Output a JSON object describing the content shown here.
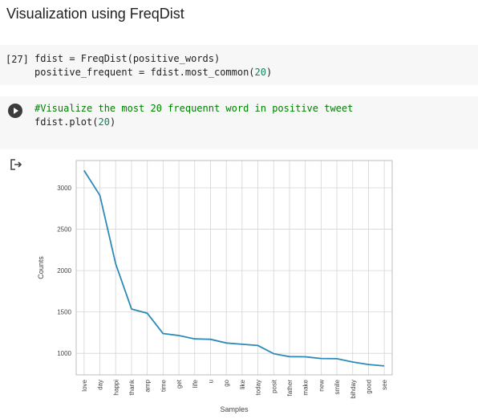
{
  "heading": "Visualization using FreqDist",
  "cells": [
    {
      "prompt": "[27]",
      "lines": [
        {
          "pre": "fdist = FreqDist(positive_words)",
          "num": "",
          "post": ""
        },
        {
          "pre": "positive_frequent = fdist.most_common(",
          "num": "20",
          "post": ")"
        }
      ]
    },
    {
      "comment": "#Visualize the most 20 frequennt word in positive tweet",
      "line": {
        "pre": "fdist.plot(",
        "num": "20",
        "post": ")"
      }
    }
  ],
  "colors": {
    "line": "#2c8ab8",
    "grid": "#d5d5d5",
    "cell_bg": "#f7f7f7",
    "comment": "#008000",
    "number": "#098658"
  },
  "output_icon": "output-arrow-icon",
  "chart_data": {
    "type": "line",
    "xlabel": "Samples",
    "ylabel": "Counts",
    "categories": [
      "love",
      "day",
      "happi",
      "thank",
      "amp",
      "time",
      "get",
      "life",
      "u",
      "go",
      "like",
      "today",
      "posit",
      "father",
      "make",
      "new",
      "smile",
      "bihday",
      "good",
      "see"
    ],
    "values": [
      3210,
      2910,
      2080,
      1535,
      1485,
      1240,
      1215,
      1175,
      1170,
      1125,
      1110,
      1095,
      995,
      960,
      958,
      938,
      935,
      895,
      865,
      848
    ],
    "yticks": [
      1000,
      1500,
      2000,
      2500,
      3000
    ],
    "ylim": [
      740,
      3330
    ],
    "grid": true
  }
}
